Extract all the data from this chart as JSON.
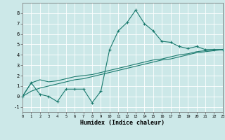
{
  "title": "",
  "xlabel": "Humidex (Indice chaleur)",
  "background_color": "#cce8e8",
  "grid_color": "#ffffff",
  "line_color": "#1a7a6e",
  "x_data": [
    0,
    1,
    2,
    3,
    4,
    5,
    6,
    7,
    8,
    9,
    10,
    11,
    12,
    13,
    14,
    15,
    16,
    17,
    18,
    19,
    20,
    21,
    22,
    23
  ],
  "y_main": [
    0.0,
    1.3,
    0.2,
    0.0,
    -0.5,
    0.7,
    0.7,
    0.7,
    -0.6,
    0.5,
    4.5,
    6.3,
    7.1,
    8.3,
    7.0,
    6.3,
    5.3,
    5.2,
    4.8,
    4.6,
    4.8,
    4.5,
    4.5,
    4.5
  ],
  "y_line2": [
    0.0,
    1.3,
    1.6,
    1.4,
    1.5,
    1.7,
    1.9,
    2.0,
    2.1,
    2.3,
    2.5,
    2.7,
    2.9,
    3.1,
    3.3,
    3.5,
    3.6,
    3.8,
    4.0,
    4.1,
    4.3,
    4.4,
    4.5,
    4.5
  ],
  "y_line3": [
    0.0,
    0.5,
    0.8,
    1.0,
    1.2,
    1.4,
    1.6,
    1.7,
    1.9,
    2.1,
    2.3,
    2.5,
    2.7,
    2.9,
    3.1,
    3.3,
    3.5,
    3.6,
    3.8,
    4.0,
    4.2,
    4.3,
    4.4,
    4.5
  ],
  "xlim": [
    0,
    23
  ],
  "ylim": [
    -1.5,
    9.0
  ],
  "yticks": [
    -1,
    0,
    1,
    2,
    3,
    4,
    5,
    6,
    7,
    8
  ],
  "xticks": [
    0,
    1,
    2,
    3,
    4,
    5,
    6,
    7,
    8,
    9,
    10,
    11,
    12,
    13,
    14,
    15,
    16,
    17,
    18,
    19,
    20,
    21,
    22,
    23
  ]
}
